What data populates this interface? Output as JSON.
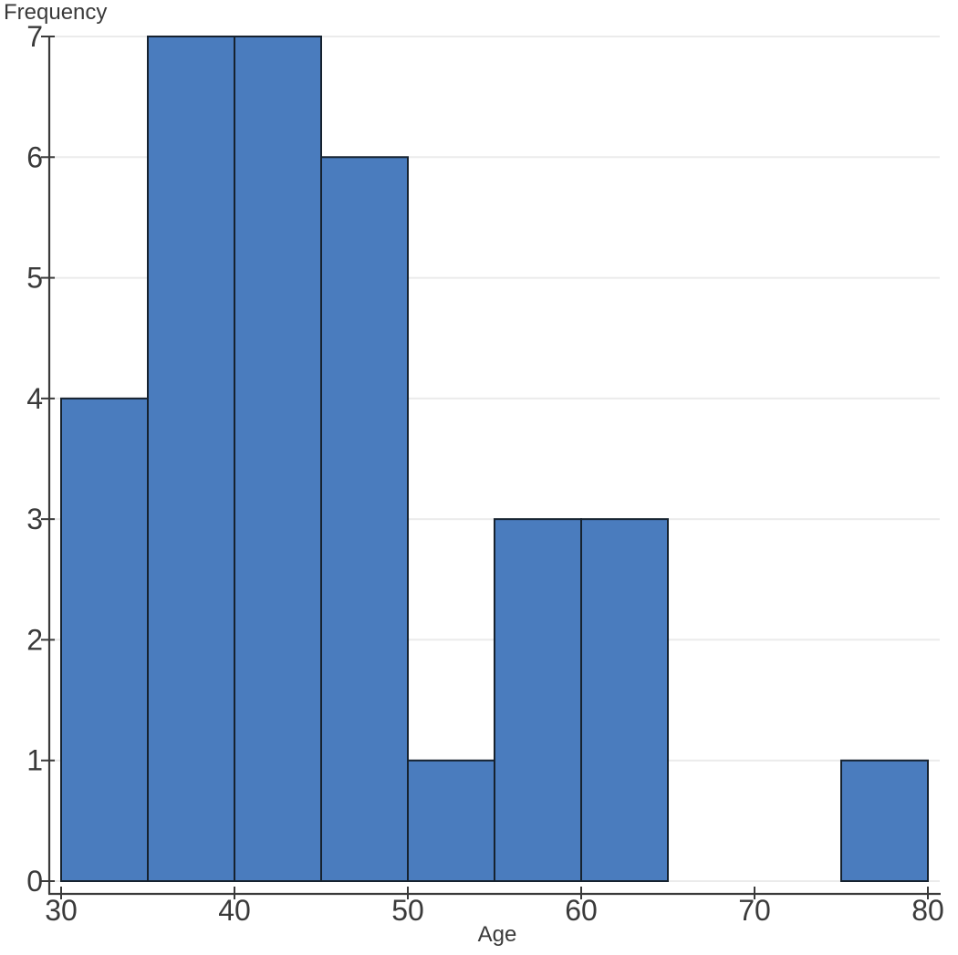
{
  "chart_data": {
    "type": "bar",
    "subtype": "histogram",
    "title": "",
    "xlabel": "Age",
    "ylabel": "Frequency",
    "bin_width": 5,
    "bin_edges": [
      30,
      35,
      40,
      45,
      50,
      55,
      60,
      65,
      70,
      75,
      80
    ],
    "counts": [
      4,
      7,
      7,
      6,
      1,
      3,
      3,
      0,
      0,
      1
    ],
    "xlim": [
      30,
      80
    ],
    "ylim": [
      0,
      7
    ],
    "x_ticks": [
      30,
      40,
      50,
      60,
      70,
      80
    ],
    "y_ticks": [
      0,
      1,
      2,
      3,
      4,
      5,
      6,
      7
    ],
    "grid": "horizontal",
    "legend": "none",
    "colors": {
      "bar_fill": "#4a7cbe",
      "bar_stroke": "#16222f",
      "grid_line": "#ebebeb",
      "axis_line": "#3a3a3a",
      "text": "#3a3a3a",
      "background": "#ffffff"
    }
  }
}
